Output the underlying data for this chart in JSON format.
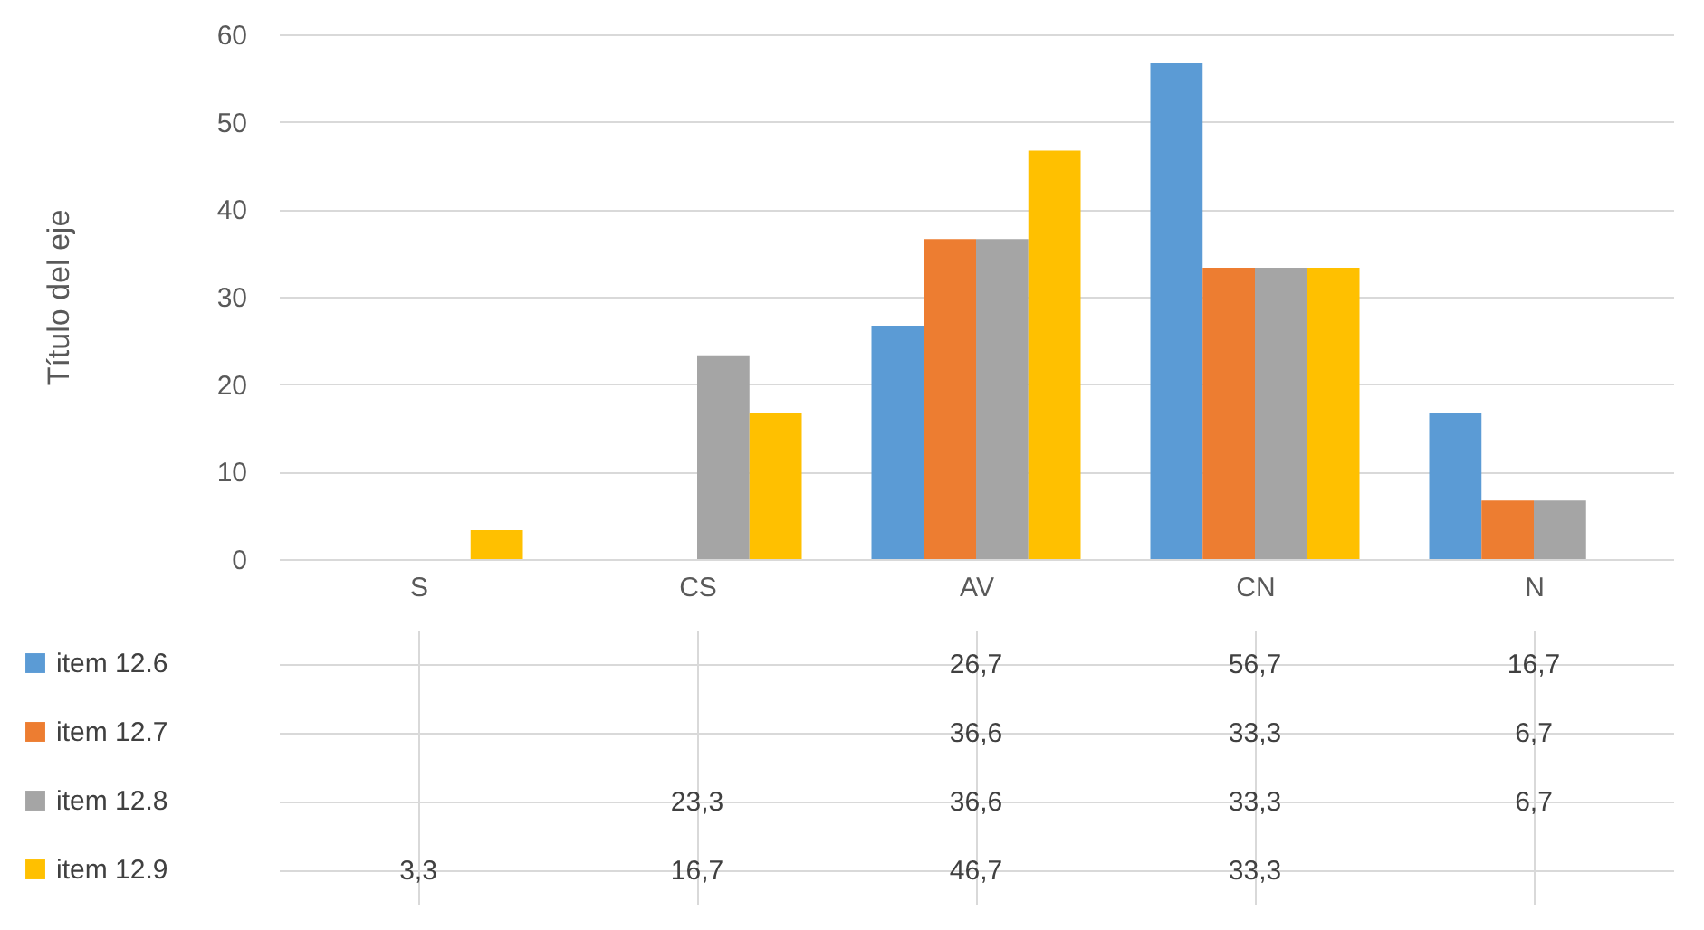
{
  "chart_data": {
    "type": "bar",
    "ylabel": "Título del eje",
    "categories": [
      "S",
      "CS",
      "AV",
      "CN",
      "N"
    ],
    "series": [
      {
        "name": "item 12.6",
        "color": "#5b9bd5",
        "values": [
          null,
          null,
          26.7,
          56.7,
          16.7
        ],
        "value_labels": [
          null,
          null,
          "26,7",
          "56,7",
          "16,7"
        ]
      },
      {
        "name": "item 12.7",
        "color": "#ed7d31",
        "values": [
          null,
          null,
          36.6,
          33.3,
          6.7
        ],
        "value_labels": [
          null,
          null,
          "36,6",
          "33,3",
          "6,7"
        ]
      },
      {
        "name": "item 12.8",
        "color": "#a5a5a5",
        "values": [
          null,
          23.3,
          36.6,
          33.3,
          6.7
        ],
        "value_labels": [
          null,
          "23,3",
          "36,6",
          "33,3",
          "6,7"
        ]
      },
      {
        "name": "item 12.9",
        "color": "#ffc000",
        "values": [
          3.3,
          16.7,
          46.7,
          33.3,
          null
        ],
        "value_labels": [
          "3,3",
          "16,7",
          "46,7",
          "33,3",
          null
        ]
      }
    ],
    "ylim": [
      0,
      60
    ],
    "yticks": [
      0,
      10,
      20,
      30,
      40,
      50,
      60
    ],
    "grid": true,
    "legend": "bottom"
  }
}
